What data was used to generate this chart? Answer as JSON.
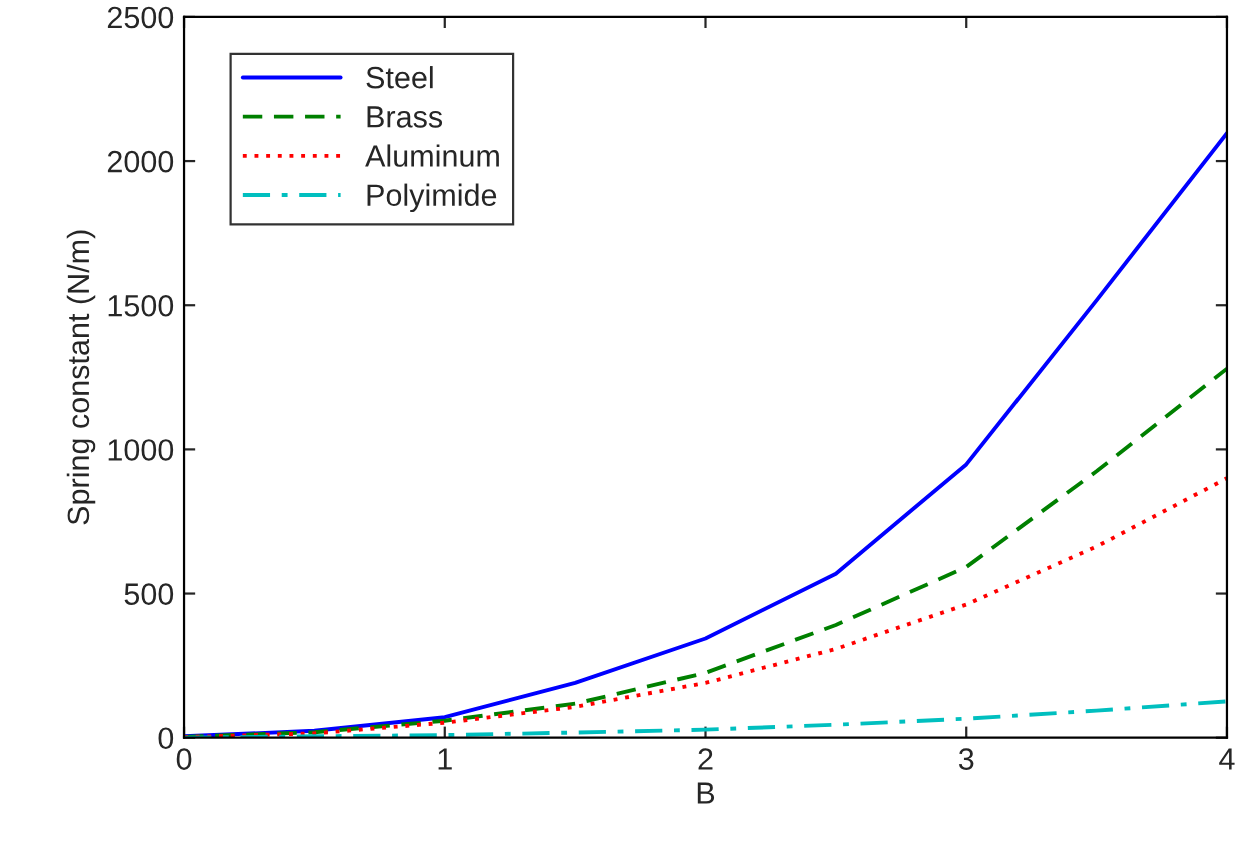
{
  "chart_data": {
    "type": "line",
    "xlabel": "B",
    "ylabel": "Spring constant (N/m)",
    "x": [
      0,
      0.5,
      1,
      1.5,
      2,
      2.5,
      3,
      3.5,
      4
    ],
    "series": [
      {
        "name": "Steel",
        "color": "#0000ff",
        "line_style": "solid",
        "values": [
          5,
          24,
          71,
          190,
          344,
          569,
          948,
          1517,
          2097
        ]
      },
      {
        "name": "Brass",
        "color": "#008000",
        "line_style": "dashed",
        "values": [
          3,
          19,
          59,
          118,
          225,
          391,
          592,
          924,
          1280
        ]
      },
      {
        "name": "Aluminum",
        "color": "#ff0000",
        "line_style": "dotted",
        "values": [
          2,
          15,
          52,
          107,
          190,
          308,
          462,
          663,
          900
        ]
      },
      {
        "name": "Polyimide",
        "color": "#00bfbf",
        "line_style": "dashdot",
        "values": [
          0,
          5,
          9,
          18,
          28,
          45,
          66,
          94,
          126
        ]
      }
    ],
    "xlim": [
      0,
      4
    ],
    "xticks": [
      0,
      1,
      2,
      3,
      4
    ],
    "ylim": [
      0,
      2500
    ],
    "yticks": [
      0,
      500,
      1000,
      1500,
      2000,
      2500
    ],
    "grid": false,
    "legend": "top left",
    "marker": "none"
  }
}
